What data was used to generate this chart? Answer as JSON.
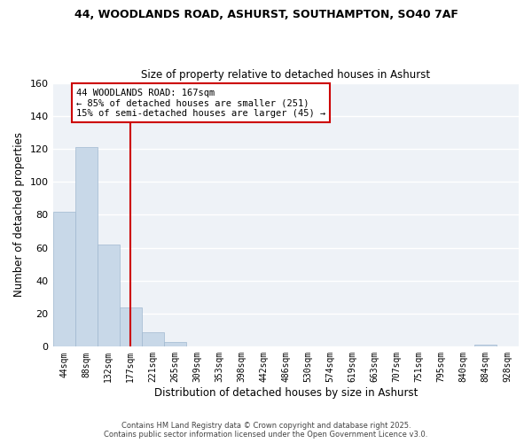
{
  "title": "44, WOODLANDS ROAD, ASHURST, SOUTHAMPTON, SO40 7AF",
  "subtitle": "Size of property relative to detached houses in Ashurst",
  "xlabel": "Distribution of detached houses by size in Ashurst",
  "ylabel": "Number of detached properties",
  "bar_labels": [
    "44sqm",
    "88sqm",
    "132sqm",
    "177sqm",
    "221sqm",
    "265sqm",
    "309sqm",
    "353sqm",
    "398sqm",
    "442sqm",
    "486sqm",
    "530sqm",
    "574sqm",
    "619sqm",
    "663sqm",
    "707sqm",
    "751sqm",
    "795sqm",
    "840sqm",
    "884sqm",
    "928sqm"
  ],
  "bar_values": [
    82,
    121,
    62,
    24,
    9,
    3,
    0,
    0,
    0,
    0,
    0,
    0,
    0,
    0,
    0,
    0,
    0,
    0,
    0,
    1,
    0
  ],
  "bar_color": "#c8d8e8",
  "bar_edge_color": "#a0b8d0",
  "vline_x": 3,
  "vline_color": "#cc0000",
  "annotation_line1": "44 WOODLANDS ROAD: 167sqm",
  "annotation_line2": "← 85% of detached houses are smaller (251)",
  "annotation_line3": "15% of semi-detached houses are larger (45) →",
  "ylim": [
    0,
    160
  ],
  "yticks": [
    0,
    20,
    40,
    60,
    80,
    100,
    120,
    140,
    160
  ],
  "background_color": "#ffffff",
  "plot_bg_color": "#eef2f7",
  "grid_color": "#ffffff",
  "footer_line1": "Contains HM Land Registry data © Crown copyright and database right 2025.",
  "footer_line2": "Contains public sector information licensed under the Open Government Licence v3.0."
}
